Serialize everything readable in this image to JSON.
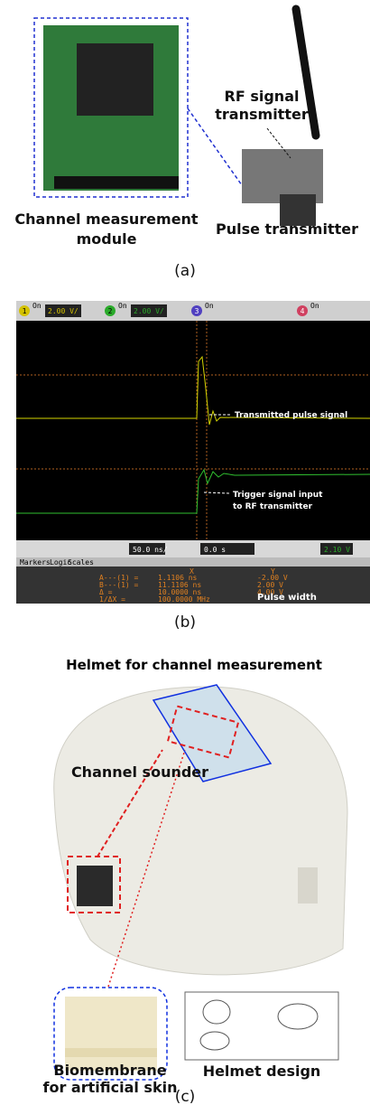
{
  "panel_a": {
    "module_label": [
      "Channel measurement",
      "module"
    ],
    "transmitter_label": "Pulse transmitter",
    "rf_label": [
      "RF signal",
      "transmitter"
    ],
    "caption": "(a)"
  },
  "panel_b": {
    "channels": [
      {
        "number": "1",
        "state": "On",
        "scale": "2.00 V/"
      },
      {
        "number": "2",
        "state": "On",
        "scale": "2.00 V/"
      },
      {
        "number": "3",
        "state": "On"
      },
      {
        "number": "4",
        "state": "On"
      }
    ],
    "annotations": {
      "pulse": "Transmitted pulse signal",
      "trigger": [
        "Trigger signal input",
        "to RF transmitter"
      ],
      "width": "Pulse width"
    },
    "timebase": "50.0 ns/",
    "delay": "0.0 s",
    "trigger_level": "2.10 V",
    "tabs": [
      "Markers",
      "Logic",
      "Scales"
    ],
    "readouts": [
      [
        "A---(1) =",
        "1.1106 ns",
        "-2.00 V"
      ],
      [
        "B---(1) =",
        "11.1106 ns",
        "2.00 V"
      ],
      [
        "Δ =",
        "10.0000 ns",
        "4.00 V"
      ],
      [
        "1/ΔX =",
        "100.0000 MHz",
        ""
      ]
    ],
    "readout_headers": [
      "X",
      "Y"
    ],
    "caption": "(b)"
  },
  "panel_c": {
    "title": "Helmet for channel measurement",
    "sounder_label": "Channel sounder",
    "skin_label": [
      "Biomembrane",
      "for artificial skin"
    ],
    "design_label": "Helmet design",
    "caption": "(c)"
  }
}
